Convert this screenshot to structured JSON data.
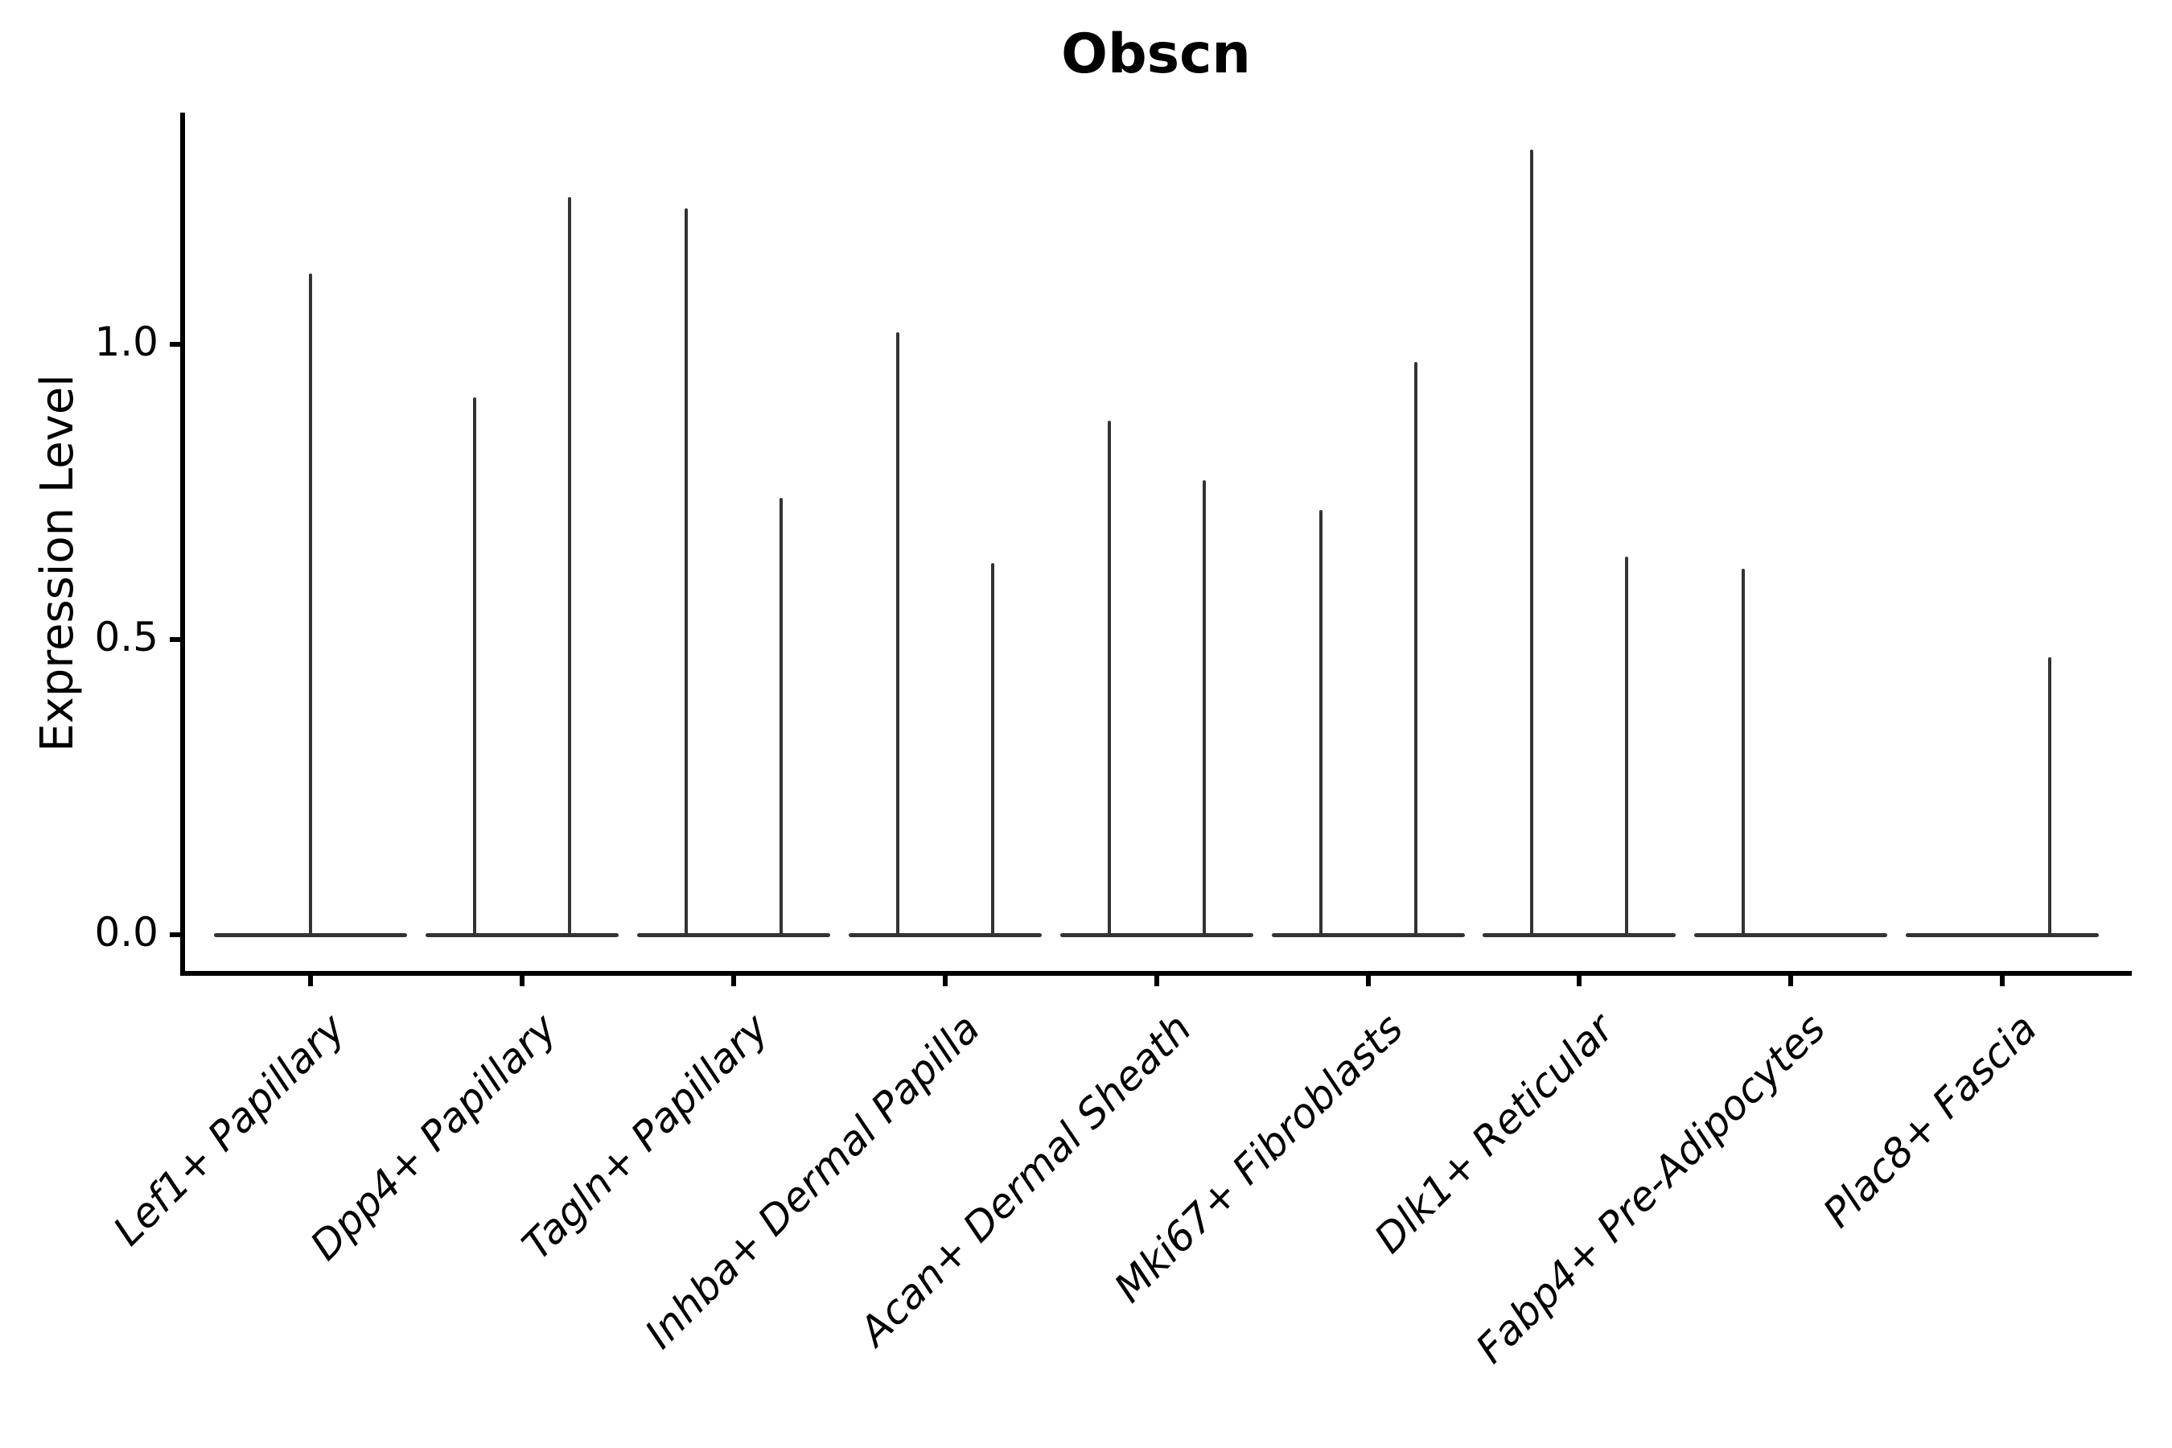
{
  "chart_data": {
    "type": "violin",
    "title": "Obscn",
    "xlabel": "",
    "ylabel": "Expression Level",
    "ylim": [
      -0.08,
      1.39
    ],
    "yticks": [
      0.0,
      0.5,
      1.0
    ],
    "ytick_labels": [
      "0.0",
      "0.5",
      "1.0"
    ],
    "grid": false,
    "legend": "none",
    "categories": [
      "Lef1+ Papillary",
      "Dpp4+ Papillary",
      "Tagln+ Papillary",
      "Inhba+ Dermal Papilla",
      "Acan+ Dermal Sheath",
      "Mki67+ Fibroblasts",
      "Dlk1+ Reticular",
      "Fabp4+ Pre-Adipocytes",
      "Plac8+ Fascia"
    ],
    "violins": [
      {
        "category": "Lef1+ Papillary",
        "base_value": 0.0,
        "spikes": [
          {
            "position": "center",
            "max": 1.12
          }
        ]
      },
      {
        "category": "Dpp4+ Papillary",
        "base_value": 0.0,
        "spikes": [
          {
            "position": "left",
            "max": 0.91
          },
          {
            "position": "right",
            "max": 1.25
          }
        ]
      },
      {
        "category": "Tagln+ Papillary",
        "base_value": 0.0,
        "spikes": [
          {
            "position": "left",
            "max": 1.23
          },
          {
            "position": "right",
            "max": 0.74
          }
        ]
      },
      {
        "category": "Inhba+ Dermal Papilla",
        "base_value": 0.0,
        "spikes": [
          {
            "position": "left",
            "max": 1.02
          },
          {
            "position": "right",
            "max": 0.63
          }
        ]
      },
      {
        "category": "Acan+ Dermal Sheath",
        "base_value": 0.0,
        "spikes": [
          {
            "position": "left",
            "max": 0.87
          },
          {
            "position": "right",
            "max": 0.77
          }
        ]
      },
      {
        "category": "Mki67+ Fibroblasts",
        "base_value": 0.0,
        "spikes": [
          {
            "position": "left",
            "max": 0.72
          },
          {
            "position": "right",
            "max": 0.97
          }
        ]
      },
      {
        "category": "Dlk1+ Reticular",
        "base_value": 0.0,
        "spikes": [
          {
            "position": "left",
            "max": 1.33
          },
          {
            "position": "right",
            "max": 0.64
          }
        ]
      },
      {
        "category": "Fabp4+ Pre-Adipocytes",
        "base_value": 0.0,
        "spikes": [
          {
            "position": "left",
            "max": 0.62
          }
        ]
      },
      {
        "category": "Plac8+ Fascia",
        "base_value": 0.0,
        "spikes": [
          {
            "position": "right",
            "max": 0.47
          }
        ]
      }
    ],
    "colors": {
      "violin_line": "#333333",
      "axis": "#000000",
      "background": "#ffffff"
    }
  }
}
